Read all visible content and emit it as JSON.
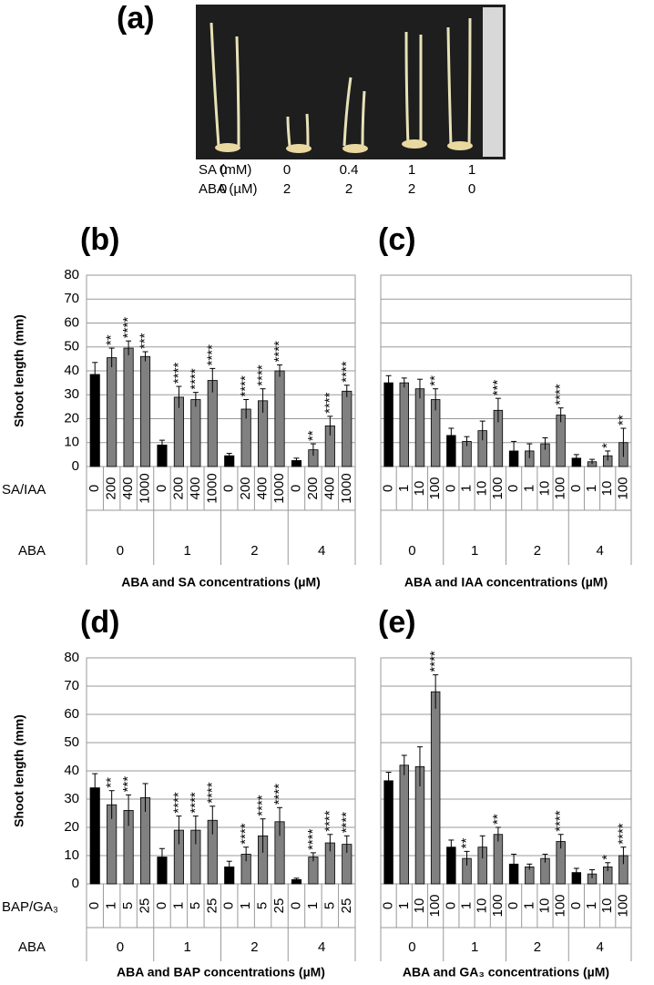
{
  "panel_a": {
    "label": "(a)",
    "rows": [
      {
        "name": "SA (mM)",
        "values": [
          0,
          0,
          0.4,
          1,
          1
        ]
      },
      {
        "name": "ABA (µM)",
        "values": [
          0,
          2,
          2,
          2,
          0
        ]
      }
    ]
  },
  "chart_data": [
    {
      "type": "bar",
      "label": "(b)",
      "ylabel": "Shoot length (mm)",
      "xlabel": "ABA and SA concentrations (µM)",
      "row_names": [
        "SA/IAA",
        "ABA"
      ],
      "groups": [
        0,
        1,
        2,
        4
      ],
      "categories": [
        "0",
        "200",
        "400",
        "1000",
        "0",
        "200",
        "400",
        "1000",
        "0",
        "200",
        "400",
        "1000",
        "0",
        "200",
        "400",
        "1000"
      ],
      "values": [
        38.5,
        45.5,
        49.5,
        46,
        9,
        29,
        28,
        36,
        4.5,
        24,
        27.5,
        40,
        2.5,
        7,
        17,
        31.5
      ],
      "errors": [
        5,
        4,
        3,
        2,
        2,
        4.5,
        3,
        5,
        1,
        4,
        5,
        2.5,
        1,
        2.5,
        4,
        2.5
      ],
      "stars": [
        null,
        "**",
        "****",
        "***",
        null,
        "****",
        "****",
        "****",
        null,
        "****",
        "****",
        "****",
        null,
        "**",
        "****",
        "****"
      ],
      "colors": [
        "#000000",
        "#808080",
        "#808080",
        "#808080",
        "#000000",
        "#808080",
        "#808080",
        "#808080",
        "#000000",
        "#808080",
        "#808080",
        "#808080",
        "#000000",
        "#808080",
        "#808080",
        "#808080"
      ],
      "ylim": [
        0,
        80
      ],
      "yticks": [
        0,
        10,
        20,
        30,
        40,
        50,
        60,
        70,
        80
      ],
      "ytick_labels": true,
      "grid": true
    },
    {
      "type": "bar",
      "label": "(c)",
      "xlabel": "ABA and IAA concentrations (µM)",
      "groups": [
        0,
        1,
        2,
        4
      ],
      "categories": [
        "0",
        "1",
        "10",
        "100",
        "0",
        "1",
        "10",
        "100",
        "0",
        "1",
        "10",
        "100",
        "0",
        "1",
        "10",
        "100"
      ],
      "values": [
        35,
        35,
        32.5,
        28,
        13,
        10.5,
        15,
        23.5,
        6.5,
        6.5,
        9.5,
        21.5,
        3.5,
        2,
        4.5,
        10
      ],
      "errors": [
        3,
        2,
        4,
        4.5,
        3,
        2,
        4,
        5,
        4,
        3,
        2.5,
        3,
        1.5,
        1,
        2,
        6
      ],
      "stars": [
        null,
        null,
        null,
        "**",
        null,
        null,
        null,
        "***",
        null,
        null,
        null,
        "****",
        null,
        null,
        "*",
        "**"
      ],
      "colors": [
        "#000000",
        "#808080",
        "#808080",
        "#808080",
        "#000000",
        "#808080",
        "#808080",
        "#808080",
        "#000000",
        "#808080",
        "#808080",
        "#808080",
        "#000000",
        "#808080",
        "#808080",
        "#808080"
      ],
      "ylim": [
        0,
        80
      ],
      "yticks": [
        0,
        10,
        20,
        30,
        40,
        50,
        60,
        70,
        80
      ],
      "ytick_labels": false,
      "grid": true
    },
    {
      "type": "bar",
      "label": "(d)",
      "ylabel": "Shoot length (mm)",
      "xlabel": "ABA and BAP concentrations (µM)",
      "row_names": [
        "BAP/GA₃",
        "ABA"
      ],
      "groups": [
        0,
        1,
        2,
        4
      ],
      "categories": [
        "0",
        "1",
        "5",
        "25",
        "0",
        "1",
        "5",
        "25",
        "0",
        "1",
        "5",
        "25",
        "0",
        "1",
        "5",
        "25"
      ],
      "values": [
        34,
        28,
        26,
        30.5,
        9.5,
        19,
        19,
        22.5,
        6,
        10.5,
        17,
        22,
        1.5,
        9.5,
        14.5,
        14
      ],
      "errors": [
        5,
        5,
        5.5,
        5,
        3,
        5,
        5,
        5,
        2,
        2.5,
        6,
        5,
        0.5,
        1.5,
        3,
        3
      ],
      "stars": [
        null,
        "**",
        "***",
        null,
        null,
        "****",
        "****",
        "****",
        null,
        "****",
        "****",
        "****",
        null,
        "****",
        "****",
        "****"
      ],
      "colors": [
        "#000000",
        "#808080",
        "#808080",
        "#808080",
        "#000000",
        "#808080",
        "#808080",
        "#808080",
        "#000000",
        "#808080",
        "#808080",
        "#808080",
        "#000000",
        "#808080",
        "#808080",
        "#808080"
      ],
      "ylim": [
        0,
        80
      ],
      "yticks": [
        0,
        10,
        20,
        30,
        40,
        50,
        60,
        70,
        80
      ],
      "ytick_labels": true,
      "grid": true
    },
    {
      "type": "bar",
      "label": "(e)",
      "xlabel": "ABA and GA₃ concentrations (µM)",
      "groups": [
        0,
        1,
        2,
        4
      ],
      "categories": [
        "0",
        "1",
        "10",
        "100",
        "0",
        "1",
        "10",
        "100",
        "0",
        "1",
        "10",
        "100",
        "0",
        "1",
        "10",
        "100"
      ],
      "values": [
        36.5,
        42,
        41.5,
        68,
        13,
        9,
        13,
        17.5,
        7,
        6,
        9,
        15,
        4,
        3.5,
        6,
        10
      ],
      "errors": [
        3,
        3.5,
        7,
        6,
        2.5,
        2.5,
        4,
        2.5,
        3.5,
        1,
        1.5,
        2.5,
        1.5,
        1.5,
        1.5,
        3
      ],
      "stars": [
        null,
        null,
        null,
        "****",
        null,
        "**",
        null,
        "**",
        null,
        null,
        null,
        "****",
        null,
        null,
        "*",
        "****"
      ],
      "colors": [
        "#000000",
        "#808080",
        "#808080",
        "#808080",
        "#000000",
        "#808080",
        "#808080",
        "#808080",
        "#000000",
        "#808080",
        "#808080",
        "#808080",
        "#000000",
        "#808080",
        "#808080",
        "#808080"
      ],
      "ylim": [
        0,
        80
      ],
      "yticks": [
        0,
        10,
        20,
        30,
        40,
        50,
        60,
        70,
        80
      ],
      "ytick_labels": false,
      "grid": true
    }
  ]
}
